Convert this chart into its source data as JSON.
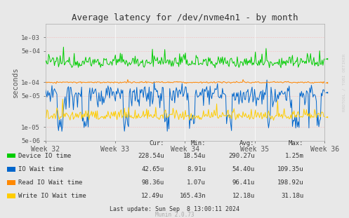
{
  "title": "Average latency for /dev/nvme4n1 - by month",
  "ylabel": "seconds",
  "bg_color": "#e8e8e8",
  "plot_bg_color": "#e8e8e8",
  "grid_color": "#ffffff",
  "border_color": "#aaaaaa",
  "dotted_color": "#ff9999",
  "colors": {
    "device_io": "#00cc00",
    "io_wait": "#0066cc",
    "read_io_wait": "#ff8800",
    "write_io_wait": "#ffcc00"
  },
  "yticks": [
    5e-06,
    1e-05,
    5e-05,
    0.0001,
    0.0005,
    0.001
  ],
  "ytick_labels": [
    "5e-06",
    "1e-05",
    "5e-05",
    "1e-04",
    "5e-04",
    "1e-03"
  ],
  "week_labels": [
    "Week 32",
    "Week 33",
    "Week 34",
    "Week 35",
    "Week 36"
  ],
  "legend": [
    {
      "label": "Device IO time",
      "cur": "228.54u",
      "min": "18.54u",
      "avg": "290.27u",
      "max": "1.25m"
    },
    {
      "label": "IO Wait time",
      "cur": "42.65u",
      "min": "8.91u",
      "avg": "54.40u",
      "max": "109.35u"
    },
    {
      "label": "Read IO Wait time",
      "cur": "98.36u",
      "min": "1.07u",
      "avg": "96.41u",
      "max": "198.92u"
    },
    {
      "label": "Write IO Wait time",
      "cur": "12.49u",
      "min": "165.43n",
      "avg": "12.18u",
      "max": "31.18u"
    }
  ],
  "footer": "Last update: Sun Sep  8 13:00:11 2024",
  "rrdtool_label": "RRDTOOL / TOBI OETIKER",
  "munin_label": "Munin 2.0.73",
  "n_points": 340
}
